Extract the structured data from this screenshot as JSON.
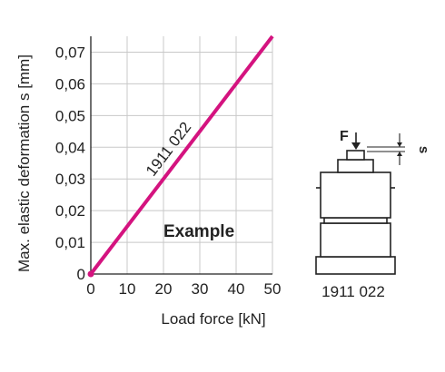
{
  "chart_data": {
    "type": "line",
    "title": "",
    "xlabel": "Load force [kN]",
    "ylabel": "Max. elastic deformation  s [mm]",
    "xlim": [
      0,
      50
    ],
    "ylim": [
      0,
      0.075
    ],
    "x_ticks": [
      0,
      10,
      20,
      30,
      40,
      50
    ],
    "x_tick_labels": [
      "0",
      "10",
      "20",
      "30",
      "40",
      "50"
    ],
    "y_ticks": [
      0,
      0.01,
      0.02,
      0.03,
      0.04,
      0.05,
      0.06,
      0.07
    ],
    "y_tick_labels": [
      "0",
      "0,01",
      "0,02",
      "0,03",
      "0,04",
      "0,05",
      "0,06",
      "0,07"
    ],
    "grid": true,
    "series": [
      {
        "name": "1911 022",
        "color": "#d4137f",
        "x": [
          0,
          50
        ],
        "y": [
          0,
          0.075
        ]
      }
    ],
    "annotations": [
      "Example"
    ]
  },
  "diagram": {
    "force_label": "F",
    "deformation_label": "s",
    "part_number": "1911 022",
    "icons": [
      "force-arrow-icon",
      "deformation-dimension-icon"
    ]
  },
  "colors": {
    "line": "#d4137f",
    "grid": "#c8c8c8",
    "axis": "#222222"
  }
}
